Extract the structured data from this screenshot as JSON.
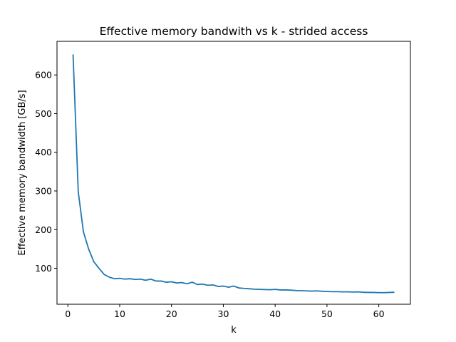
{
  "chart_data": {
    "type": "line",
    "title": "Effective memory bandwith vs k - strided access",
    "xlabel": "k",
    "ylabel": "Effective memory bandwidth [GB/s]",
    "xlim": [
      -2.1,
      66.1
    ],
    "ylim": [
      7,
      687
    ],
    "xticks": [
      0,
      10,
      20,
      30,
      40,
      50,
      60
    ],
    "yticks": [
      100,
      200,
      300,
      400,
      500,
      600
    ],
    "grid": false,
    "legend": "none",
    "series": [
      {
        "color": "#1f77b4",
        "x": [
          1,
          2,
          3,
          4,
          5,
          6,
          7,
          8,
          9,
          10,
          11,
          12,
          13,
          14,
          15,
          16,
          17,
          18,
          19,
          20,
          21,
          22,
          23,
          24,
          25,
          26,
          27,
          28,
          29,
          30,
          31,
          32,
          33,
          34,
          35,
          36,
          37,
          38,
          39,
          40,
          41,
          42,
          43,
          44,
          45,
          46,
          47,
          48,
          49,
          50,
          51,
          52,
          53,
          54,
          55,
          56,
          57,
          58,
          59,
          60,
          61,
          62,
          63
        ],
        "values": [
          653,
          298,
          194,
          150,
          117,
          100,
          84,
          77,
          73,
          74,
          72,
          73,
          71,
          72,
          69,
          72,
          67,
          67,
          64,
          65,
          62,
          63,
          60,
          64,
          58,
          59,
          56,
          57,
          53,
          54,
          51,
          54,
          49,
          48,
          47,
          46,
          45.5,
          45,
          44.5,
          45.5,
          44,
          44,
          43.5,
          42.5,
          42,
          41.5,
          41,
          41.5,
          40.5,
          40,
          39.5,
          39.5,
          39,
          39,
          38.5,
          39,
          38,
          37.5,
          37.5,
          37,
          37,
          37.5,
          38
        ]
      }
    ]
  }
}
